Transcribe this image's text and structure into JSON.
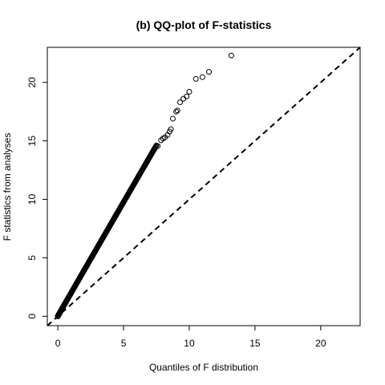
{
  "chart_data": {
    "type": "scatter",
    "title": "(b) QQ-plot of F-statistics",
    "xlabel": "Quantiles of F distribution",
    "ylabel": "F statistics from analyses",
    "xlim": [
      -0.8,
      23.0
    ],
    "ylim": [
      -0.8,
      23.0
    ],
    "xticks": [
      0,
      5,
      10,
      15,
      20
    ],
    "yticks": [
      0,
      5,
      10,
      15,
      20
    ],
    "grid": false,
    "marker": "open-circle",
    "reference_line": {
      "style": "dashed",
      "slope": 1,
      "intercept": 0
    },
    "outliers": {
      "x": [
        7.6,
        7.85,
        8.0,
        8.15,
        8.35,
        8.5,
        8.6,
        8.75,
        9.0,
        9.1,
        9.3,
        9.55,
        9.8,
        10.0,
        10.5,
        11.0,
        11.5,
        13.2
      ],
      "y": [
        14.55,
        15.05,
        15.2,
        15.3,
        15.5,
        15.8,
        16.0,
        16.9,
        17.5,
        17.6,
        18.3,
        18.6,
        18.8,
        19.2,
        20.3,
        20.45,
        20.9,
        22.3
      ]
    }
  }
}
